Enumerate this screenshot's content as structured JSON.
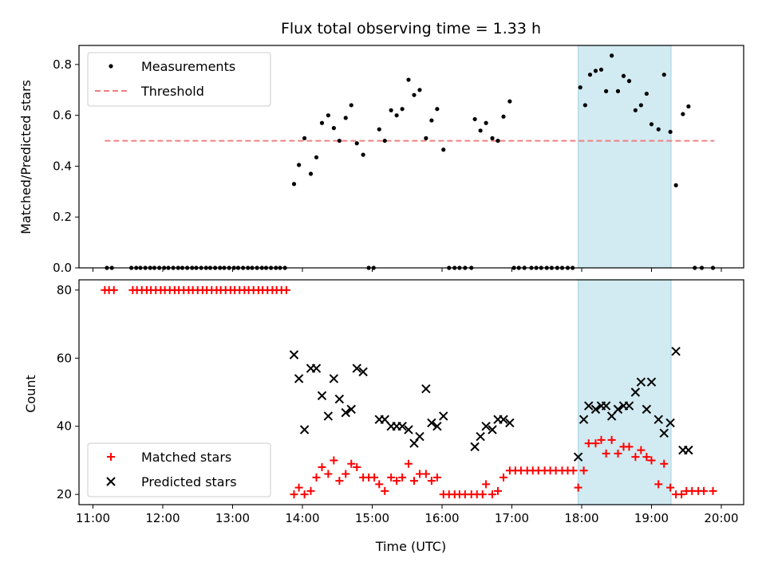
{
  "chart_data": {
    "title": "Flux total observing time = 1.33 h",
    "xlabel": "Time (UTC)",
    "x_ticks": [
      "11:00",
      "12:00",
      "13:00",
      "14:00",
      "15:00",
      "16:00",
      "17:00",
      "18:00",
      "19:00",
      "20:00"
    ],
    "xlim_hours": [
      10.8,
      20.32
    ],
    "shaded_span_hours": [
      17.95,
      19.28
    ],
    "shade_color": "#add8e6",
    "panels": [
      {
        "type": "scatter",
        "ylabel": "Matched/Predicted stars",
        "ylim": [
          0,
          0.875
        ],
        "y_ticks": [
          "0.0",
          "0.2",
          "0.4",
          "0.6",
          "0.8"
        ],
        "legend_position": "upper-left",
        "threshold": {
          "name": "Threshold",
          "value": 0.5,
          "x_range": [
            11.17,
            19.9
          ],
          "color": "#f08080"
        },
        "measurements": {
          "name": "Measurements",
          "color": "#000000",
          "points": [
            [
              11.2,
              0
            ],
            [
              11.27,
              0
            ],
            [
              11.55,
              0
            ],
            [
              11.62,
              0
            ],
            [
              11.68,
              0
            ],
            [
              11.75,
              0
            ],
            [
              11.82,
              0
            ],
            [
              11.88,
              0
            ],
            [
              11.95,
              0
            ],
            [
              12.02,
              0
            ],
            [
              12.08,
              0
            ],
            [
              12.15,
              0
            ],
            [
              12.22,
              0
            ],
            [
              12.28,
              0
            ],
            [
              12.35,
              0
            ],
            [
              12.42,
              0
            ],
            [
              12.48,
              0
            ],
            [
              12.55,
              0
            ],
            [
              12.62,
              0
            ],
            [
              12.68,
              0
            ],
            [
              12.75,
              0
            ],
            [
              12.82,
              0
            ],
            [
              12.88,
              0
            ],
            [
              12.95,
              0
            ],
            [
              13.02,
              0
            ],
            [
              13.08,
              0
            ],
            [
              13.15,
              0
            ],
            [
              13.22,
              0
            ],
            [
              13.28,
              0
            ],
            [
              13.35,
              0
            ],
            [
              13.42,
              0
            ],
            [
              13.48,
              0
            ],
            [
              13.55,
              0
            ],
            [
              13.62,
              0
            ],
            [
              13.68,
              0
            ],
            [
              13.75,
              0
            ],
            [
              13.88,
              0.33
            ],
            [
              13.95,
              0.405
            ],
            [
              14.03,
              0.51
            ],
            [
              14.12,
              0.37
            ],
            [
              14.2,
              0.435
            ],
            [
              14.28,
              0.57
            ],
            [
              14.37,
              0.6
            ],
            [
              14.45,
              0.55
            ],
            [
              14.53,
              0.5
            ],
            [
              14.62,
              0.59
            ],
            [
              14.7,
              0.64
            ],
            [
              14.78,
              0.49
            ],
            [
              14.87,
              0.445
            ],
            [
              14.95,
              0
            ],
            [
              15.02,
              0
            ],
            [
              15.1,
              0.545
            ],
            [
              15.18,
              0.5
            ],
            [
              15.27,
              0.62
            ],
            [
              15.35,
              0.6
            ],
            [
              15.43,
              0.625
            ],
            [
              15.52,
              0.74
            ],
            [
              15.6,
              0.68
            ],
            [
              15.68,
              0.7
            ],
            [
              15.77,
              0.51
            ],
            [
              15.85,
              0.58
            ],
            [
              15.93,
              0.625
            ],
            [
              16.02,
              0.465
            ],
            [
              16.1,
              0
            ],
            [
              16.18,
              0
            ],
            [
              16.25,
              0
            ],
            [
              16.33,
              0
            ],
            [
              16.42,
              0
            ],
            [
              16.47,
              0.585
            ],
            [
              16.55,
              0.54
            ],
            [
              16.63,
              0.57
            ],
            [
              16.72,
              0.51
            ],
            [
              16.8,
              0.5
            ],
            [
              16.88,
              0.595
            ],
            [
              16.97,
              0.655
            ],
            [
              17.03,
              0
            ],
            [
              17.1,
              0
            ],
            [
              17.18,
              0
            ],
            [
              17.28,
              0
            ],
            [
              17.35,
              0
            ],
            [
              17.42,
              0
            ],
            [
              17.5,
              0
            ],
            [
              17.57,
              0
            ],
            [
              17.65,
              0
            ],
            [
              17.72,
              0
            ],
            [
              17.8,
              0
            ],
            [
              17.87,
              0
            ],
            [
              17.98,
              0.71
            ],
            [
              18.05,
              0.64
            ],
            [
              18.12,
              0.76
            ],
            [
              18.2,
              0.775
            ],
            [
              18.28,
              0.78
            ],
            [
              18.35,
              0.695
            ],
            [
              18.43,
              0.835
            ],
            [
              18.52,
              0.695
            ],
            [
              18.6,
              0.755
            ],
            [
              18.68,
              0.735
            ],
            [
              18.77,
              0.62
            ],
            [
              18.85,
              0.64
            ],
            [
              18.93,
              0.685
            ],
            [
              19.0,
              0.565
            ],
            [
              19.1,
              0.545
            ],
            [
              19.18,
              0.76
            ],
            [
              19.27,
              0.535
            ],
            [
              19.35,
              0.325
            ],
            [
              19.45,
              0.605
            ],
            [
              19.53,
              0.635
            ],
            [
              19.62,
              0
            ],
            [
              19.72,
              0
            ],
            [
              19.88,
              0
            ]
          ]
        }
      },
      {
        "type": "scatter",
        "ylabel": "Count",
        "ylim": [
          17,
          83
        ],
        "y_ticks": [
          "20",
          "40",
          "60",
          "80"
        ],
        "legend_position": "lower-left",
        "matched": {
          "name": "Matched stars",
          "color": "#ff0000",
          "marker": "+",
          "points": [
            [
              11.17,
              80
            ],
            [
              11.23,
              80
            ],
            [
              11.3,
              80
            ],
            [
              11.57,
              80
            ],
            [
              11.63,
              80
            ],
            [
              11.7,
              80
            ],
            [
              11.77,
              80
            ],
            [
              11.83,
              80
            ],
            [
              11.9,
              80
            ],
            [
              11.97,
              80
            ],
            [
              12.03,
              80
            ],
            [
              12.1,
              80
            ],
            [
              12.17,
              80
            ],
            [
              12.23,
              80
            ],
            [
              12.3,
              80
            ],
            [
              12.37,
              80
            ],
            [
              12.43,
              80
            ],
            [
              12.5,
              80
            ],
            [
              12.57,
              80
            ],
            [
              12.63,
              80
            ],
            [
              12.7,
              80
            ],
            [
              12.77,
              80
            ],
            [
              12.83,
              80
            ],
            [
              12.9,
              80
            ],
            [
              12.97,
              80
            ],
            [
              13.03,
              80
            ],
            [
              13.1,
              80
            ],
            [
              13.17,
              80
            ],
            [
              13.23,
              80
            ],
            [
              13.3,
              80
            ],
            [
              13.37,
              80
            ],
            [
              13.43,
              80
            ],
            [
              13.5,
              80
            ],
            [
              13.57,
              80
            ],
            [
              13.63,
              80
            ],
            [
              13.7,
              80
            ],
            [
              13.77,
              80
            ],
            [
              13.88,
              20
            ],
            [
              13.95,
              22
            ],
            [
              14.03,
              20
            ],
            [
              14.12,
              21
            ],
            [
              14.2,
              25
            ],
            [
              14.28,
              28
            ],
            [
              14.37,
              26
            ],
            [
              14.45,
              30
            ],
            [
              14.53,
              24
            ],
            [
              14.62,
              26
            ],
            [
              14.7,
              29
            ],
            [
              14.78,
              28
            ],
            [
              14.87,
              25
            ],
            [
              14.95,
              25
            ],
            [
              15.03,
              25
            ],
            [
              15.1,
              23
            ],
            [
              15.18,
              21
            ],
            [
              15.27,
              25
            ],
            [
              15.35,
              24
            ],
            [
              15.43,
              25
            ],
            [
              15.52,
              29
            ],
            [
              15.6,
              24
            ],
            [
              15.68,
              26
            ],
            [
              15.77,
              26
            ],
            [
              15.85,
              24
            ],
            [
              15.93,
              25
            ],
            [
              16.02,
              20
            ],
            [
              16.1,
              20
            ],
            [
              16.18,
              20
            ],
            [
              16.25,
              20
            ],
            [
              16.33,
              20
            ],
            [
              16.42,
              20
            ],
            [
              16.5,
              20
            ],
            [
              16.58,
              20
            ],
            [
              16.63,
              23
            ],
            [
              16.72,
              20
            ],
            [
              16.8,
              21
            ],
            [
              16.88,
              25
            ],
            [
              16.97,
              27
            ],
            [
              17.05,
              27
            ],
            [
              17.13,
              27
            ],
            [
              17.22,
              27
            ],
            [
              17.3,
              27
            ],
            [
              17.38,
              27
            ],
            [
              17.47,
              27
            ],
            [
              17.55,
              27
            ],
            [
              17.63,
              27
            ],
            [
              17.72,
              27
            ],
            [
              17.8,
              27
            ],
            [
              17.88,
              27
            ],
            [
              17.95,
              22
            ],
            [
              18.03,
              27
            ],
            [
              18.1,
              35
            ],
            [
              18.2,
              35
            ],
            [
              18.28,
              36
            ],
            [
              18.35,
              32
            ],
            [
              18.43,
              36
            ],
            [
              18.52,
              32
            ],
            [
              18.6,
              34
            ],
            [
              18.68,
              34
            ],
            [
              18.77,
              31
            ],
            [
              18.85,
              33
            ],
            [
              18.93,
              31
            ],
            [
              19.0,
              30
            ],
            [
              19.1,
              23
            ],
            [
              19.18,
              29
            ],
            [
              19.27,
              22
            ],
            [
              19.35,
              20
            ],
            [
              19.43,
              20
            ],
            [
              19.5,
              21
            ],
            [
              19.58,
              21
            ],
            [
              19.67,
              21
            ],
            [
              19.75,
              21
            ],
            [
              19.88,
              21
            ]
          ]
        },
        "predicted": {
          "name": "Predicted stars",
          "color": "#000000",
          "marker": "x",
          "points": [
            [
              13.88,
              61
            ],
            [
              13.95,
              54
            ],
            [
              14.03,
              39
            ],
            [
              14.12,
              57
            ],
            [
              14.2,
              57
            ],
            [
              14.28,
              49
            ],
            [
              14.37,
              43
            ],
            [
              14.45,
              54
            ],
            [
              14.53,
              48
            ],
            [
              14.62,
              44
            ],
            [
              14.7,
              45
            ],
            [
              14.78,
              57
            ],
            [
              14.87,
              56
            ],
            [
              15.1,
              42
            ],
            [
              15.18,
              42
            ],
            [
              15.27,
              40
            ],
            [
              15.35,
              40
            ],
            [
              15.43,
              40
            ],
            [
              15.52,
              39
            ],
            [
              15.6,
              35
            ],
            [
              15.68,
              37
            ],
            [
              15.77,
              51
            ],
            [
              15.85,
              41
            ],
            [
              15.93,
              40
            ],
            [
              16.02,
              43
            ],
            [
              16.47,
              34
            ],
            [
              16.55,
              37
            ],
            [
              16.63,
              40
            ],
            [
              16.72,
              39
            ],
            [
              16.8,
              42
            ],
            [
              16.88,
              42
            ],
            [
              16.97,
              41
            ],
            [
              17.95,
              31
            ],
            [
              18.03,
              42
            ],
            [
              18.1,
              46
            ],
            [
              18.2,
              45
            ],
            [
              18.28,
              46
            ],
            [
              18.35,
              46
            ],
            [
              18.43,
              43
            ],
            [
              18.52,
              45
            ],
            [
              18.6,
              46
            ],
            [
              18.68,
              46
            ],
            [
              18.77,
              50
            ],
            [
              18.85,
              53
            ],
            [
              18.93,
              45
            ],
            [
              19.0,
              53
            ],
            [
              19.1,
              42
            ],
            [
              19.18,
              38
            ],
            [
              19.27,
              41
            ],
            [
              19.35,
              62
            ],
            [
              19.45,
              33
            ],
            [
              19.53,
              33
            ]
          ]
        }
      }
    ]
  }
}
